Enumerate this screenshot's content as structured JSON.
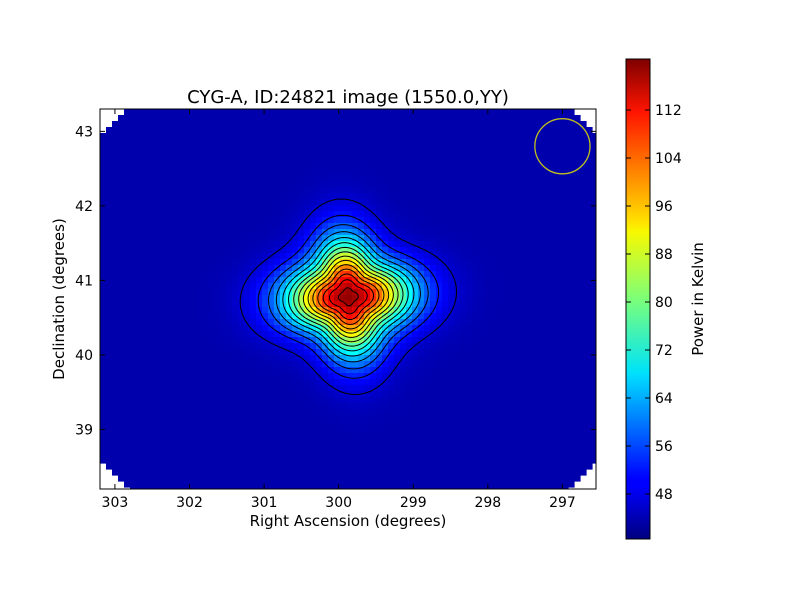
{
  "chart_data": {
    "type": "heatmap",
    "title": "CYG-A, ID:24821 image (1550.0,YY)",
    "xlabel": "Right Ascension (degrees)",
    "ylabel": "Declination (degrees)",
    "xlim": [
      303.2,
      296.55
    ],
    "ylim": [
      38.2,
      43.3
    ],
    "xticks": [
      303,
      302,
      301,
      300,
      299,
      298,
      297
    ],
    "xtick_labels": [
      "303",
      "302",
      "301",
      "300",
      "299",
      "298",
      "297"
    ],
    "yticks": [
      39,
      40,
      41,
      42,
      43
    ],
    "ytick_labels": [
      "39",
      "40",
      "41",
      "42",
      "43"
    ],
    "colorbar": {
      "label": "Power in Kelvin",
      "range": [
        40.5,
        120.5
      ],
      "ticks": [
        48,
        56,
        64,
        72,
        80,
        88,
        96,
        104,
        112
      ],
      "tick_labels": [
        "48",
        "56",
        "64",
        "72",
        "80",
        "88",
        "96",
        "104",
        "112"
      ],
      "colormap": "jet"
    },
    "source_peak": {
      "ra": 299.87,
      "dec": 40.78,
      "value": 119
    },
    "background_level": 44,
    "contour_levels": [
      47,
      52,
      57,
      62,
      67,
      72,
      77,
      82,
      87,
      92,
      97,
      102,
      107,
      112,
      117
    ],
    "beam": {
      "ra": 297.0,
      "dec": 42.8,
      "radius_deg": 0.37,
      "color": "#bfbf1f"
    },
    "grid": false
  }
}
